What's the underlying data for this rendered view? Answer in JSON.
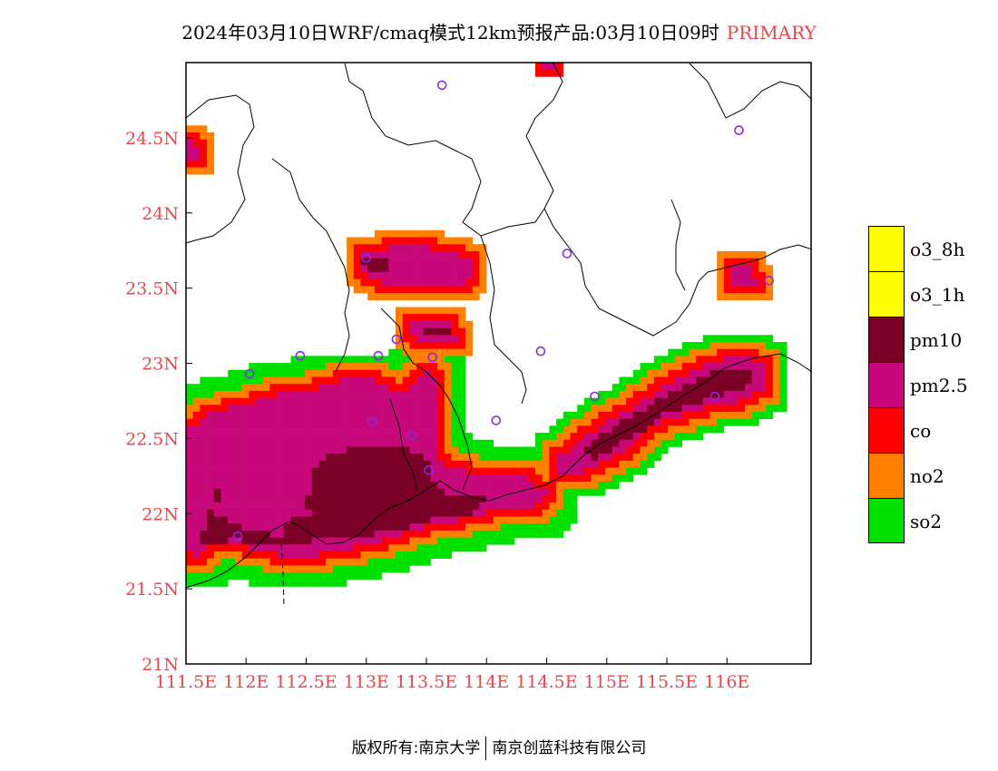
{
  "title": {
    "main": "2024年03月10日WRF/cmaq模式12km预报产品:03月10日09时",
    "tag": "PRIMARY",
    "tag_color": "#e8474c"
  },
  "map": {
    "lon_range": [
      111.5,
      116.7
    ],
    "lat_range": [
      21.0,
      25.0
    ],
    "x_ticks": [
      {
        "value": 111.5,
        "label": "111.5E"
      },
      {
        "value": 112.0,
        "label": "112E"
      },
      {
        "value": 112.5,
        "label": "112.5E"
      },
      {
        "value": 113.0,
        "label": "113E"
      },
      {
        "value": 113.5,
        "label": "113.5E"
      },
      {
        "value": 114.0,
        "label": "114E"
      },
      {
        "value": 114.5,
        "label": "114.5E"
      },
      {
        "value": 115.0,
        "label": "115E"
      },
      {
        "value": 115.5,
        "label": "115.5E"
      },
      {
        "value": 116.0,
        "label": "116E"
      }
    ],
    "y_ticks": [
      {
        "value": 21.0,
        "label": "21N"
      },
      {
        "value": 21.5,
        "label": "21.5N"
      },
      {
        "value": 22.0,
        "label": "22N"
      },
      {
        "value": 22.5,
        "label": "22.5N"
      },
      {
        "value": 23.0,
        "label": "23N"
      },
      {
        "value": 23.5,
        "label": "23.5N"
      },
      {
        "value": 24.0,
        "label": "24N"
      },
      {
        "value": 24.5,
        "label": "24.5N"
      }
    ],
    "tick_label_color": "#e8474c",
    "station_color": "#8a2be2",
    "stations": [
      [
        113.63,
        24.85
      ],
      [
        116.1,
        24.55
      ],
      [
        114.67,
        23.73
      ],
      [
        113.0,
        23.7
      ],
      [
        116.35,
        23.55
      ],
      [
        113.25,
        23.16
      ],
      [
        112.45,
        23.05
      ],
      [
        113.1,
        23.05
      ],
      [
        113.55,
        23.04
      ],
      [
        114.45,
        23.08
      ],
      [
        112.03,
        22.93
      ],
      [
        113.05,
        22.61
      ],
      [
        114.08,
        22.62
      ],
      [
        113.38,
        22.52
      ],
      [
        113.52,
        22.29
      ],
      [
        111.93,
        21.85
      ],
      [
        114.9,
        22.78
      ],
      [
        115.9,
        22.78
      ]
    ]
  },
  "colors": {
    "o3_8h": "#ffff00",
    "o3_1h": "#ffff00",
    "pm10": "#7a0026",
    "pm25": "#c8087a",
    "co": "#ff0000",
    "no2": "#ff8000",
    "so2": "#00e000"
  },
  "legend": [
    {
      "key": "o3_8h",
      "label": "o3_8h",
      "color": "#ffff00"
    },
    {
      "key": "o3_1h",
      "label": "o3_1h",
      "color": "#ffff00"
    },
    {
      "key": "pm10",
      "label": "pm10",
      "color": "#7a0026"
    },
    {
      "key": "pm25",
      "label": "pm2.5",
      "color": "#c8087a"
    },
    {
      "key": "co",
      "label": "co",
      "color": "#ff0000"
    },
    {
      "key": "no2",
      "label": "no2",
      "color": "#ff8000"
    },
    {
      "key": "so2",
      "label": "so2",
      "color": "#00e000"
    }
  ],
  "regions": [
    {
      "name": "west-coast",
      "pts": [
        [
          111.5,
          22.55
        ],
        [
          111.7,
          22.67
        ],
        [
          112.3,
          22.8
        ],
        [
          112.9,
          22.88
        ],
        [
          113.0,
          22.85
        ],
        [
          113.3,
          22.8
        ],
        [
          113.5,
          22.95
        ],
        [
          113.6,
          22.9
        ],
        [
          113.6,
          22.35
        ],
        [
          113.9,
          22.25
        ],
        [
          114.3,
          22.25
        ],
        [
          114.5,
          22.15
        ],
        [
          114.4,
          22.05
        ],
        [
          114.1,
          22.05
        ],
        [
          113.9,
          21.97
        ],
        [
          113.7,
          21.95
        ],
        [
          113.4,
          21.9
        ],
        [
          113.2,
          21.83
        ],
        [
          113.0,
          21.8
        ],
        [
          112.8,
          21.75
        ],
        [
          112.55,
          21.72
        ],
        [
          112.3,
          21.72
        ],
        [
          112.1,
          21.75
        ],
        [
          111.9,
          21.8
        ],
        [
          111.75,
          21.82
        ],
        [
          111.6,
          21.72
        ],
        [
          111.5,
          21.75
        ]
      ],
      "rings": 4,
      "core": "pm25"
    },
    {
      "name": "pm10-core-west",
      "pts": [
        [
          111.6,
          21.85
        ],
        [
          111.75,
          22.05
        ],
        [
          111.8,
          22.25
        ],
        [
          111.7,
          22.0
        ],
        [
          112.0,
          21.9
        ],
        [
          112.3,
          21.85
        ],
        [
          112.3,
          21.95
        ],
        [
          112.6,
          22.0
        ],
        [
          112.85,
          22.35
        ],
        [
          113.1,
          22.45
        ],
        [
          113.4,
          22.42
        ],
        [
          113.55,
          22.35
        ],
        [
          113.55,
          22.1
        ],
        [
          113.3,
          21.97
        ],
        [
          113.0,
          21.85
        ],
        [
          112.6,
          21.82
        ],
        [
          112.3,
          21.8
        ],
        [
          111.9,
          21.82
        ],
        [
          111.6,
          21.8
        ]
      ],
      "rings": 0,
      "core": "pm10"
    },
    {
      "name": "pm10-core-delta",
      "pts": [
        [
          112.7,
          22.4
        ],
        [
          113.0,
          22.45
        ],
        [
          113.3,
          22.38
        ],
        [
          113.5,
          22.3
        ],
        [
          113.6,
          22.15
        ],
        [
          113.9,
          22.12
        ],
        [
          114.05,
          22.12
        ],
        [
          113.9,
          22.0
        ],
        [
          113.6,
          21.97
        ],
        [
          113.3,
          21.9
        ],
        [
          113.0,
          21.85
        ],
        [
          112.7,
          21.9
        ],
        [
          112.5,
          22.05
        ],
        [
          112.55,
          22.3
        ]
      ],
      "rings": 0,
      "core": "pm10"
    },
    {
      "name": "guangzhou-north",
      "pts": [
        [
          112.95,
          23.73
        ],
        [
          113.35,
          23.8
        ],
        [
          113.6,
          23.75
        ],
        [
          113.85,
          23.7
        ],
        [
          113.9,
          23.55
        ],
        [
          113.6,
          23.5
        ],
        [
          113.3,
          23.5
        ],
        [
          113.1,
          23.55
        ],
        [
          112.95,
          23.6
        ]
      ],
      "rings": 2,
      "core": "pm25"
    },
    {
      "name": "guangzhou-core",
      "pts": [
        [
          112.95,
          23.72
        ],
        [
          113.15,
          23.72
        ],
        [
          113.2,
          23.6
        ],
        [
          113.0,
          23.58
        ]
      ],
      "rings": 0,
      "core": "pm10"
    },
    {
      "name": "guangzhou-mid",
      "pts": [
        [
          113.35,
          23.3
        ],
        [
          113.7,
          23.3
        ],
        [
          113.75,
          23.15
        ],
        [
          113.4,
          23.15
        ]
      ],
      "rings": 2,
      "core": "pm25"
    },
    {
      "name": "guangzhou-mid-core",
      "pts": [
        [
          113.45,
          23.22
        ],
        [
          113.7,
          23.22
        ],
        [
          113.7,
          23.17
        ],
        [
          113.45,
          23.17
        ]
      ],
      "rings": 0,
      "core": "pm10"
    },
    {
      "name": "foshan",
      "pts": [
        [
          112.8,
          22.9
        ],
        [
          113.2,
          22.88
        ],
        [
          113.1,
          22.72
        ],
        [
          112.85,
          22.75
        ]
      ],
      "rings": 2,
      "core": "pm25"
    },
    {
      "name": "east-coast",
      "pts": [
        [
          114.55,
          22.35
        ],
        [
          114.9,
          22.55
        ],
        [
          115.3,
          22.75
        ],
        [
          115.6,
          22.9
        ],
        [
          115.85,
          23.0
        ],
        [
          116.1,
          23.05
        ],
        [
          116.3,
          23.0
        ],
        [
          116.35,
          22.85
        ],
        [
          116.1,
          22.75
        ],
        [
          115.8,
          22.7
        ],
        [
          115.4,
          22.6
        ],
        [
          115.2,
          22.45
        ],
        [
          114.9,
          22.3
        ],
        [
          114.6,
          22.25
        ]
      ],
      "rings": 3,
      "core": "pm25"
    },
    {
      "name": "east-coast-core",
      "pts": [
        [
          114.75,
          22.4
        ],
        [
          115.0,
          22.55
        ],
        [
          115.35,
          22.72
        ],
        [
          115.65,
          22.85
        ],
        [
          115.9,
          22.95
        ],
        [
          116.15,
          22.98
        ],
        [
          116.25,
          22.9
        ],
        [
          116.1,
          22.82
        ],
        [
          115.8,
          22.75
        ],
        [
          115.45,
          22.65
        ],
        [
          115.25,
          22.52
        ],
        [
          114.9,
          22.37
        ]
      ],
      "rings": 0,
      "core": "pm10"
    },
    {
      "name": "shantou",
      "pts": [
        [
          116.0,
          23.65
        ],
        [
          116.2,
          23.65
        ],
        [
          116.25,
          23.5
        ],
        [
          116.05,
          23.5
        ]
      ],
      "rings": 2,
      "core": "pm25"
    },
    {
      "name": "northwest-corner",
      "pts": [
        [
          111.5,
          24.5
        ],
        [
          111.6,
          24.45
        ],
        [
          111.6,
          24.35
        ],
        [
          111.5,
          24.35
        ]
      ],
      "rings": 2,
      "core": "pm25"
    },
    {
      "name": "north-edge",
      "pts": [
        [
          114.45,
          25.0
        ],
        [
          114.6,
          25.0
        ],
        [
          114.6,
          24.97
        ],
        [
          114.45,
          24.97
        ]
      ],
      "rings": 1,
      "core": "pm25"
    }
  ],
  "copyright": {
    "left": "版权所有:南京大学",
    "right": "南京创蓝科技有限公司"
  }
}
